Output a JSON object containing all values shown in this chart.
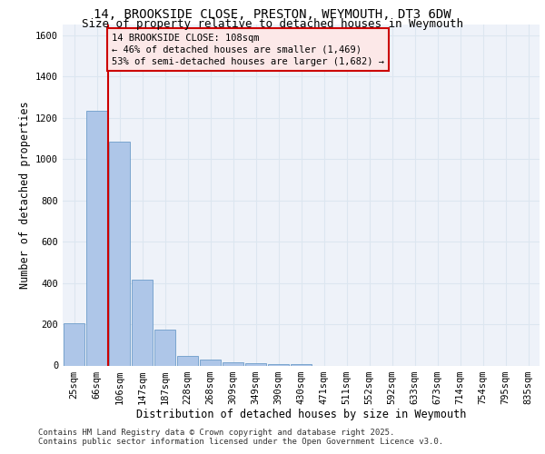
{
  "title_line1": "14, BROOKSIDE CLOSE, PRESTON, WEYMOUTH, DT3 6DW",
  "title_line2": "Size of property relative to detached houses in Weymouth",
  "xlabel": "Distribution of detached houses by size in Weymouth",
  "ylabel": "Number of detached properties",
  "categories": [
    "25sqm",
    "66sqm",
    "106sqm",
    "147sqm",
    "187sqm",
    "228sqm",
    "268sqm",
    "309sqm",
    "349sqm",
    "390sqm",
    "430sqm",
    "471sqm",
    "511sqm",
    "552sqm",
    "592sqm",
    "633sqm",
    "673sqm",
    "714sqm",
    "754sqm",
    "795sqm",
    "835sqm"
  ],
  "values": [
    205,
    1235,
    1085,
    415,
    175,
    47,
    27,
    15,
    10,
    7,
    5,
    0,
    0,
    0,
    0,
    0,
    0,
    0,
    0,
    0,
    0
  ],
  "bar_color": "#aec6e8",
  "bar_edge_color": "#5a8fc2",
  "grid_color": "#dce6f0",
  "background_color": "#eef2f9",
  "vline_bar_index": 2,
  "vline_color": "#cc0000",
  "annotation_text": "14 BROOKSIDE CLOSE: 108sqm\n← 46% of detached houses are smaller (1,469)\n53% of semi-detached houses are larger (1,682) →",
  "annotation_box_facecolor": "#fce8e8",
  "annotation_box_edgecolor": "#cc0000",
  "ylim": [
    0,
    1650
  ],
  "yticks": [
    0,
    200,
    400,
    600,
    800,
    1000,
    1200,
    1400,
    1600
  ],
  "footer_line1": "Contains HM Land Registry data © Crown copyright and database right 2025.",
  "footer_line2": "Contains public sector information licensed under the Open Government Licence v3.0.",
  "title_fontsize": 10,
  "subtitle_fontsize": 9,
  "axis_label_fontsize": 8.5,
  "tick_fontsize": 7.5,
  "annotation_fontsize": 7.5,
  "footer_fontsize": 6.5
}
